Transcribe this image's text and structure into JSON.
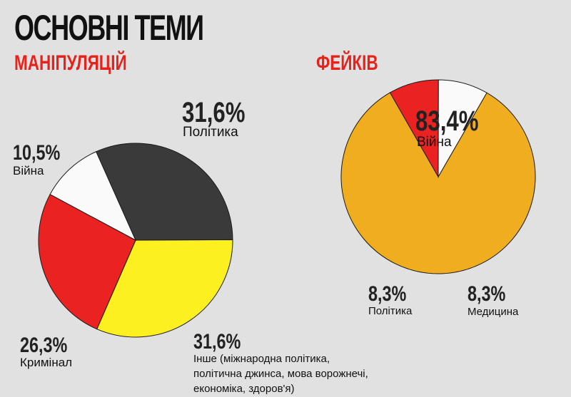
{
  "page": {
    "title": "ОСНОВНІ ТЕМИ"
  },
  "chart_data": [
    {
      "type": "pie",
      "title": "МАНІПУЛЯЦІЙ",
      "slices": [
        {
          "label": "Політика",
          "value": 31.6,
          "value_text": "31,6%",
          "color": "#3a3a3a"
        },
        {
          "label": "Інше (міжнародна політика, політична джинса, мова ворожнечі, економіка, здоров'я)",
          "value": 31.6,
          "value_text": "31,6%",
          "color": "#fdf021"
        },
        {
          "label": "Кримінал",
          "value": 26.3,
          "value_text": "26,3%",
          "color": "#eb2222"
        },
        {
          "label": "Війна",
          "value": 10.5,
          "value_text": "10,5%",
          "color": "#fafafa"
        }
      ],
      "other_label_lines": [
        "Інше (міжнародна політика,",
        "політична джинса, мова ворожнечі,",
        "економіка, здоров'я)"
      ]
    },
    {
      "type": "pie",
      "title": "ФЕЙКІВ",
      "slices": [
        {
          "label": "Війна",
          "value": 83.4,
          "value_text": "83,4%",
          "color": "#f0ad1f"
        },
        {
          "label": "Медицина",
          "value": 8.3,
          "value_text": "8,3%",
          "color": "#fafafa"
        },
        {
          "label": "Політика",
          "value": 8.3,
          "value_text": "8,3%",
          "color": "#eb2222"
        }
      ]
    }
  ]
}
